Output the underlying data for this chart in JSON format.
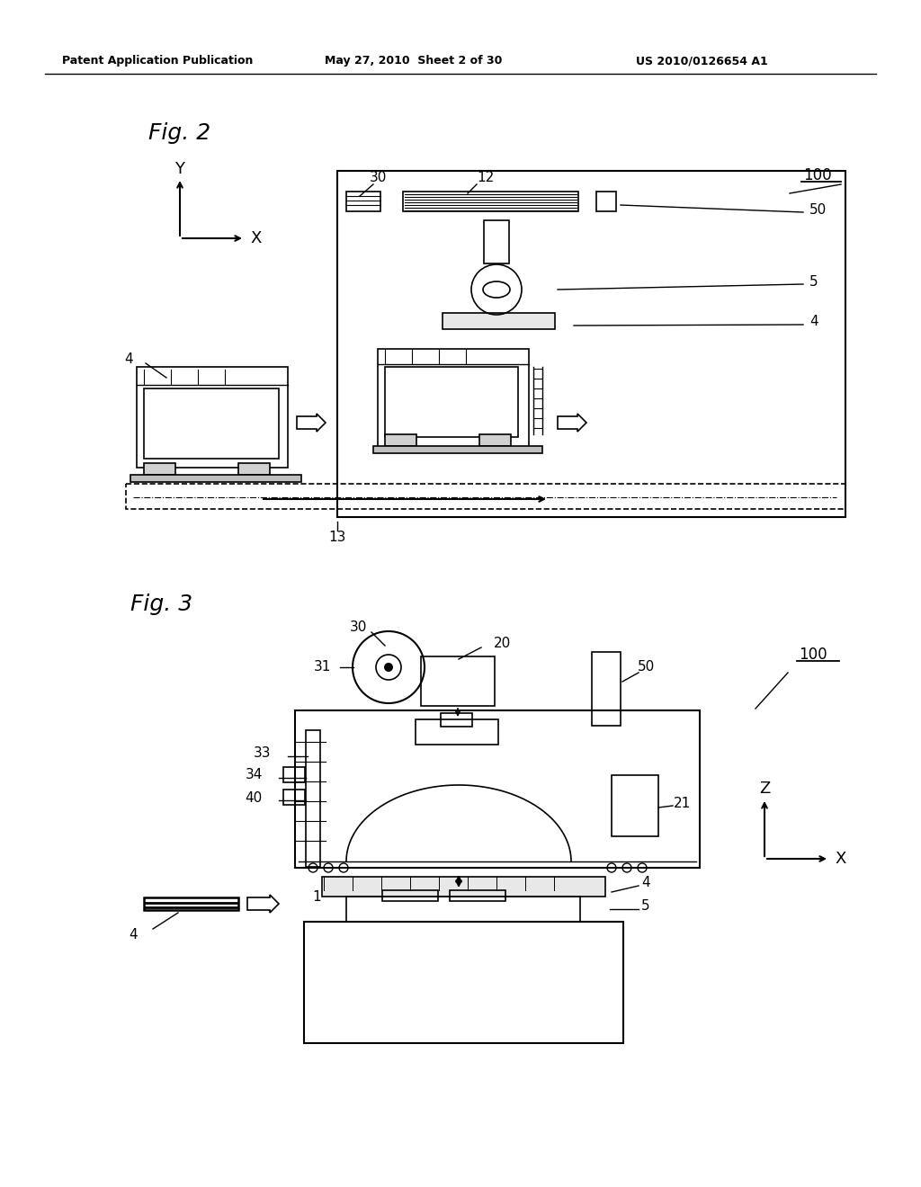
{
  "bg_color": "#ffffff",
  "header_left": "Patent Application Publication",
  "header_mid": "May 27, 2010  Sheet 2 of 30",
  "header_right": "US 2010/0126654 A1",
  "fig2_label": "Fig. 2",
  "fig3_label": "Fig. 3"
}
